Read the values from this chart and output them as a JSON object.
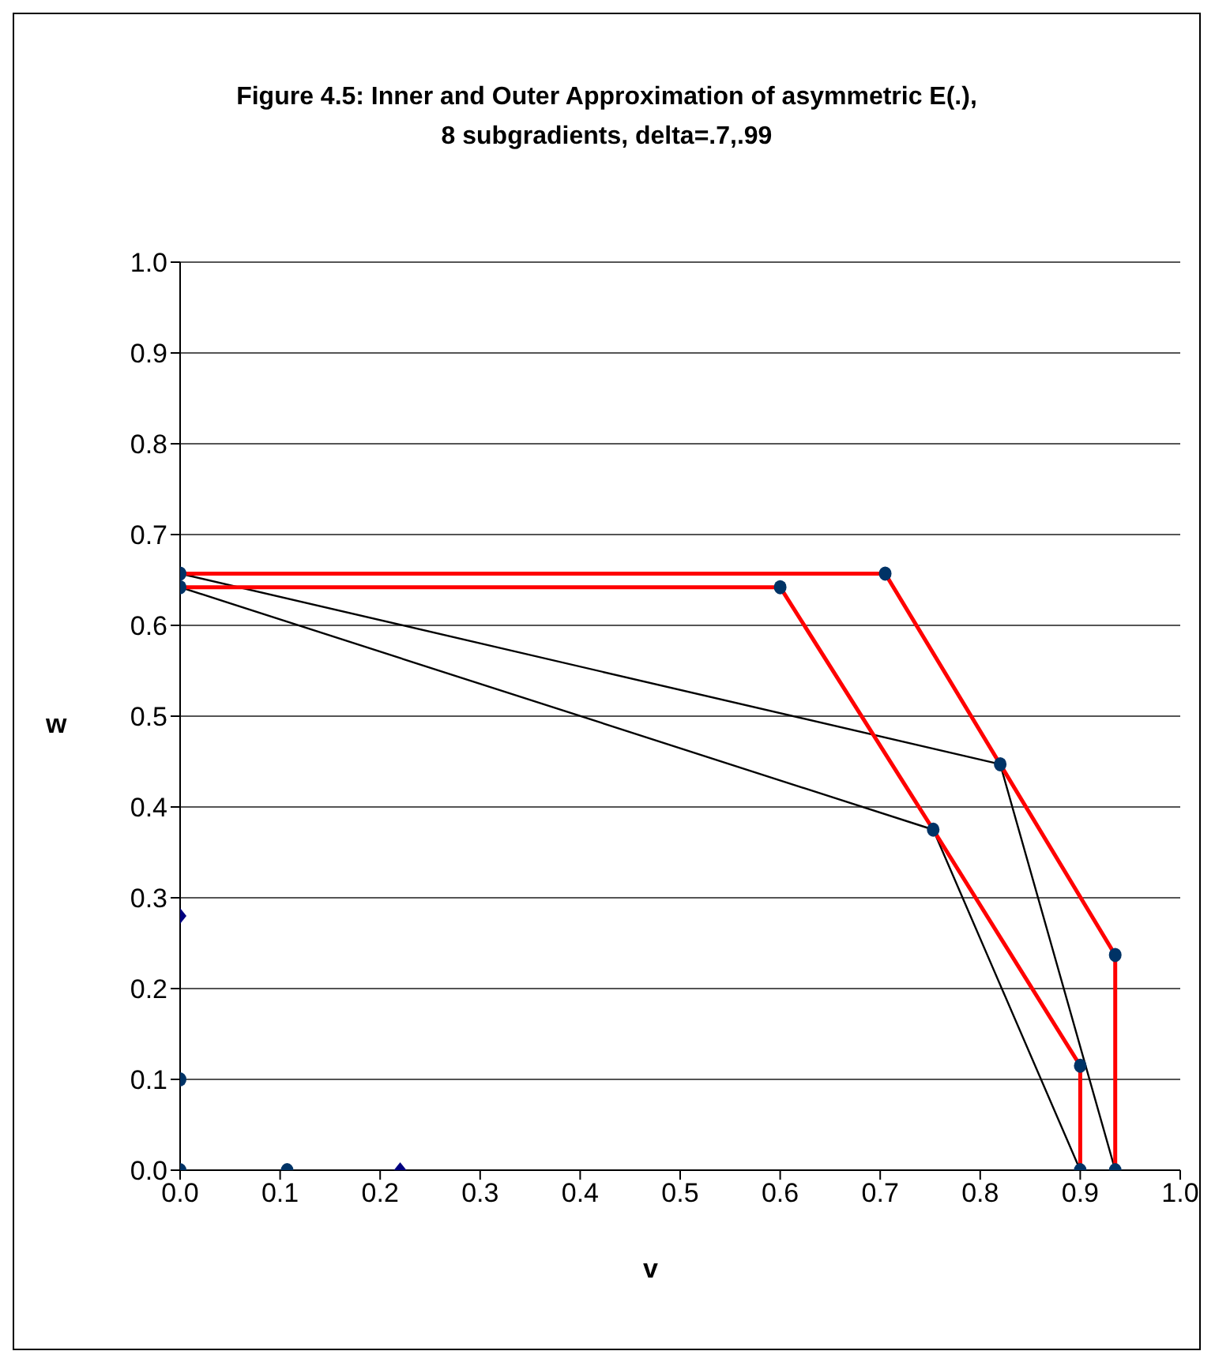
{
  "chart_data": {
    "type": "line",
    "title": "Figure 4.5: Inner and Outer Approximation of asymmetric E(.),\n8 subgradients, delta=.7,.99",
    "xlabel": "v",
    "ylabel": "w",
    "xlim": [
      0,
      1
    ],
    "ylim": [
      0,
      1
    ],
    "xticks": [
      {
        "value": 0,
        "label": "0.0"
      },
      0.1,
      0.2,
      0.3,
      0.4,
      0.5,
      0.6,
      0.7,
      0.8,
      0.9,
      {
        "value": 1,
        "label": "1.0"
      }
    ],
    "yticks": [
      {
        "value": 0,
        "label": "0.0"
      },
      0.1,
      0.2,
      0.3,
      0.4,
      0.5,
      0.6,
      0.7,
      0.8,
      0.9,
      {
        "value": 1,
        "label": "1.0"
      }
    ],
    "grid": "y",
    "legend": false,
    "series": [
      {
        "color": "#000000",
        "marker": "none",
        "x": [
          0,
          0.82,
          0.935
        ],
        "values": [
          0.657,
          0.447,
          0
        ]
      },
      {
        "color": "#000000",
        "marker": "none",
        "x": [
          0,
          0.753,
          0.9
        ],
        "values": [
          0.642,
          0.375,
          0
        ]
      },
      {
        "color": "#ff0000",
        "marker": "none",
        "x": [
          0,
          0.705,
          0.82,
          0.935,
          0.935
        ],
        "values": [
          0.657,
          0.657,
          0.447,
          0.237,
          0
        ]
      },
      {
        "color": "#ff0000",
        "marker": "none",
        "x": [
          0,
          0.6,
          0.753,
          0.9,
          0.9
        ],
        "values": [
          0.642,
          0.642,
          0.375,
          0.115,
          0
        ]
      },
      {
        "type": "scatter",
        "color": "#003366",
        "marker": "circle",
        "x": [
          0,
          0.705,
          0.82,
          0.935,
          0.935,
          0,
          0.6,
          0.753,
          0.9,
          0.9,
          0,
          0,
          0.107
        ],
        "values": [
          0.657,
          0.657,
          0.447,
          0.237,
          0,
          0.642,
          0.642,
          0.375,
          0.115,
          0,
          0.1,
          0,
          0
        ]
      },
      {
        "type": "scatter",
        "color": "#000080",
        "marker": "diamond",
        "x": [
          0,
          0.22
        ],
        "values": [
          0.28,
          0
        ]
      }
    ]
  }
}
